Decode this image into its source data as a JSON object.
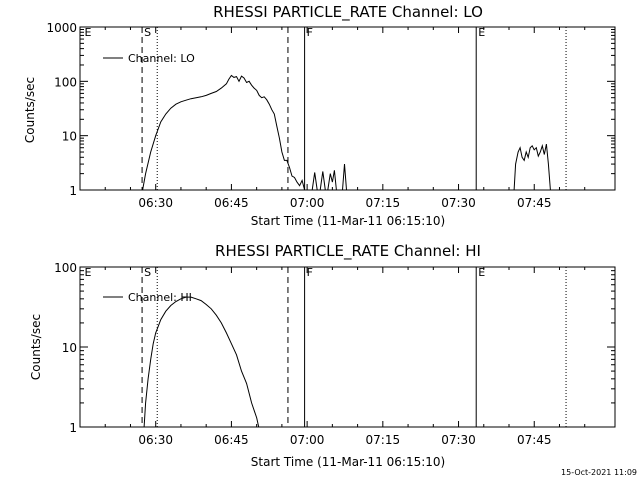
{
  "chart_data": [
    {
      "type": "line",
      "title": "RHESSI PARTICLE_RATE Channel: LO",
      "xlabel": "Start Time (11-Mar-11 06:15:10)",
      "ylabel": "Counts/sec",
      "yscale": "log",
      "ylim": [
        1,
        1000
      ],
      "xlim_minutes": [
        0,
        106
      ],
      "x_ticks": [
        {
          "t": 15,
          "label": "06:30"
        },
        {
          "t": 30,
          "label": "06:45"
        },
        {
          "t": 45,
          "label": "07:00"
        },
        {
          "t": 60,
          "label": "07:15"
        },
        {
          "t": 75,
          "label": "07:30"
        },
        {
          "t": 90,
          "label": "07:45"
        }
      ],
      "y_ticks": [
        {
          "v": 1,
          "label": "1"
        },
        {
          "v": 10,
          "label": "10"
        },
        {
          "v": 100,
          "label": "100"
        },
        {
          "v": 1000,
          "label": "1000"
        }
      ],
      "legend": "Channel: LO",
      "markers": [
        {
          "t": 0.5,
          "letter": "E",
          "style": "none"
        },
        {
          "t": 12.3,
          "letter": "S",
          "style": "dashed"
        },
        {
          "t": 41.2,
          "letter": "",
          "style": "dashed"
        },
        {
          "t": 15.3,
          "letter": "",
          "style": "dotted"
        },
        {
          "t": 44.5,
          "letter": "F",
          "style": "solid"
        },
        {
          "t": 78.5,
          "letter": "E",
          "style": "solid"
        },
        {
          "t": 96.3,
          "letter": "",
          "style": "dotted"
        }
      ],
      "series": [
        {
          "name": "Channel: LO",
          "segments": [
            [
              [
                12.4,
                1
              ],
              [
                13,
                2
              ],
              [
                14,
                5
              ],
              [
                15,
                10
              ],
              [
                16,
                18
              ],
              [
                17,
                25
              ],
              [
                18,
                32
              ],
              [
                19,
                38
              ],
              [
                20,
                42
              ],
              [
                21,
                45
              ],
              [
                22,
                48
              ],
              [
                23,
                50
              ],
              [
                24,
                52
              ],
              [
                25,
                55
              ],
              [
                26,
                60
              ],
              [
                27,
                65
              ],
              [
                28,
                75
              ],
              [
                29,
                90
              ],
              [
                29.5,
                110
              ],
              [
                30,
                128
              ],
              [
                30.5,
                118
              ],
              [
                31,
                122
              ],
              [
                31.5,
                100
              ],
              [
                32,
                125
              ],
              [
                32.5,
                115
              ],
              [
                33,
                95
              ],
              [
                33.5,
                100
              ],
              [
                34,
                85
              ],
              [
                34.5,
                75
              ],
              [
                35,
                68
              ],
              [
                35.5,
                55
              ],
              [
                36,
                50
              ],
              [
                36.5,
                52
              ],
              [
                37,
                46
              ],
              [
                37.5,
                38
              ],
              [
                38,
                30
              ],
              [
                38.5,
                25
              ],
              [
                39,
                15
              ],
              [
                39.5,
                9
              ],
              [
                40,
                5
              ],
              [
                40.5,
                3.5
              ],
              [
                41,
                3.5
              ],
              [
                41.5,
                2.6
              ],
              [
                42,
                1.8
              ],
              [
                42.5,
                1.7
              ],
              [
                43,
                1.4
              ],
              [
                43.5,
                1.2
              ],
              [
                44,
                1.5
              ],
              [
                44.5,
                1
              ]
            ],
            [
              [
                46,
                1
              ],
              [
                46.5,
                2.1
              ],
              [
                47,
                1
              ]
            ],
            [
              [
                47.6,
                1
              ],
              [
                48.1,
                2.2
              ],
              [
                48.6,
                1
              ]
            ],
            [
              [
                49.1,
                1
              ],
              [
                49.6,
                2
              ],
              [
                50,
                1.4
              ],
              [
                50.4,
                2.3
              ],
              [
                50.8,
                1
              ]
            ],
            [
              [
                52,
                1
              ],
              [
                52.4,
                3
              ],
              [
                52.8,
                1
              ]
            ],
            [
              [
                86,
                1
              ],
              [
                86.3,
                3
              ],
              [
                86.8,
                5
              ],
              [
                87.2,
                6
              ],
              [
                87.6,
                4
              ],
              [
                88,
                3.5
              ],
              [
                88.4,
                5
              ],
              [
                88.8,
                4
              ],
              [
                89.2,
                6
              ],
              [
                89.6,
                6.5
              ],
              [
                90,
                5.5
              ],
              [
                90.4,
                6
              ],
              [
                90.8,
                4.2
              ],
              [
                91.2,
                5
              ],
              [
                91.6,
                6.5
              ],
              [
                92,
                4.5
              ],
              [
                92.4,
                7
              ],
              [
                92.8,
                3
              ],
              [
                93.2,
                1
              ]
            ]
          ]
        }
      ]
    },
    {
      "type": "line",
      "title": "RHESSI PARTICLE_RATE Channel: HI",
      "xlabel": "Start Time (11-Mar-11 06:15:10)",
      "ylabel": "Counts/sec",
      "yscale": "log",
      "ylim": [
        1,
        100
      ],
      "xlim_minutes": [
        0,
        106
      ],
      "x_ticks": [
        {
          "t": 15,
          "label": "06:30"
        },
        {
          "t": 30,
          "label": "06:45"
        },
        {
          "t": 45,
          "label": "07:00"
        },
        {
          "t": 60,
          "label": "07:15"
        },
        {
          "t": 75,
          "label": "07:30"
        },
        {
          "t": 90,
          "label": "07:45"
        }
      ],
      "y_ticks": [
        {
          "v": 1,
          "label": "1"
        },
        {
          "v": 10,
          "label": "10"
        },
        {
          "v": 100,
          "label": "100"
        }
      ],
      "legend": "Channel: HI",
      "markers": [
        {
          "t": 0.5,
          "letter": "E",
          "style": "none"
        },
        {
          "t": 12.3,
          "letter": "S",
          "style": "dashed"
        },
        {
          "t": 41.2,
          "letter": "",
          "style": "dashed"
        },
        {
          "t": 15.3,
          "letter": "",
          "style": "dotted"
        },
        {
          "t": 44.5,
          "letter": "F",
          "style": "solid"
        },
        {
          "t": 78.5,
          "letter": "E",
          "style": "solid"
        },
        {
          "t": 96.3,
          "letter": "",
          "style": "dotted"
        }
      ],
      "series": [
        {
          "name": "Channel: HI",
          "segments": [
            [
              [
                12.7,
                1
              ],
              [
                13,
                2
              ],
              [
                13.5,
                4
              ],
              [
                14,
                7
              ],
              [
                14.5,
                11
              ],
              [
                15,
                15
              ],
              [
                16,
                22
              ],
              [
                17,
                28
              ],
              [
                18,
                33
              ],
              [
                19,
                37
              ],
              [
                20,
                40
              ],
              [
                21,
                42
              ],
              [
                22,
                42
              ],
              [
                23,
                40
              ],
              [
                24,
                38
              ],
              [
                25,
                34
              ],
              [
                26,
                30
              ],
              [
                27,
                25
              ],
              [
                28,
                20
              ],
              [
                29,
                15
              ],
              [
                30,
                11
              ],
              [
                31,
                8
              ],
              [
                32,
                5
              ],
              [
                33,
                3.5
              ],
              [
                34,
                2
              ],
              [
                35,
                1.3
              ],
              [
                35.4,
                1
              ]
            ]
          ]
        }
      ]
    }
  ],
  "footer_stamp": "15-Oct-2021 11:09"
}
